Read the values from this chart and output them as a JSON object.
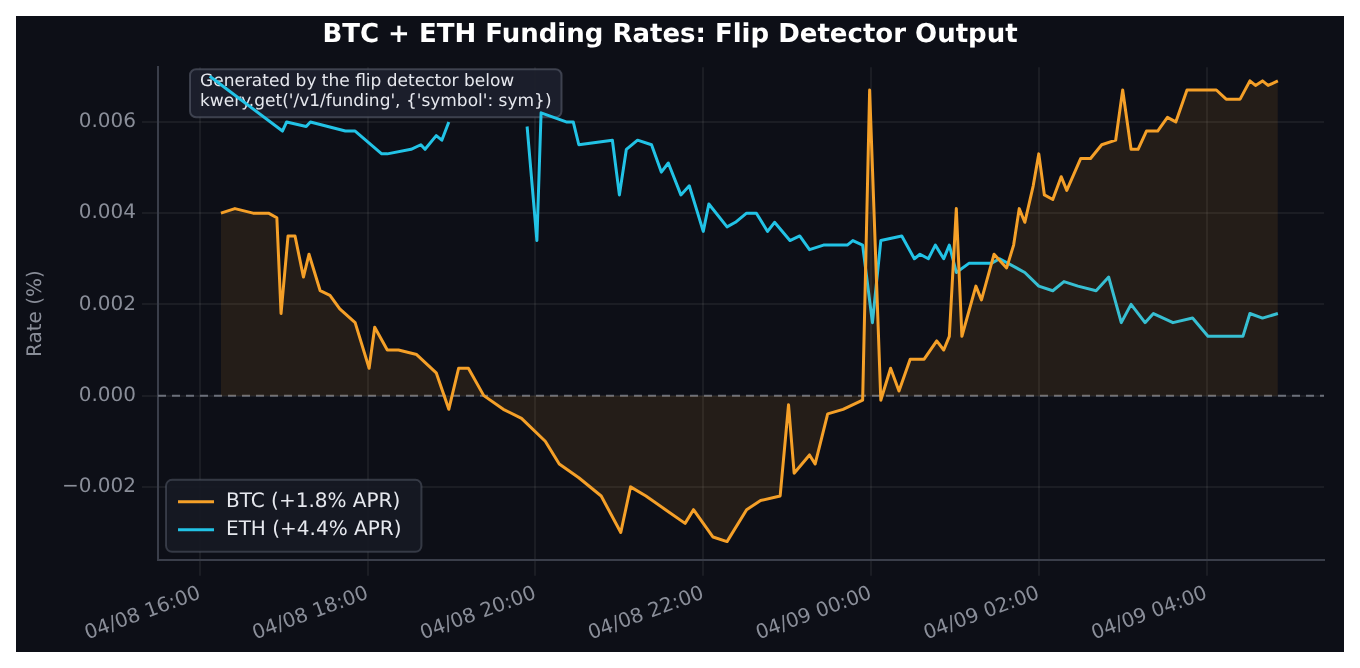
{
  "chart_data": {
    "type": "line",
    "title": "BTC + ETH Funding Rates: Flip Detector Output",
    "ylabel": "Rate (%)",
    "annotations": [
      "Generated by the flip detector below\nkwery.get('/v1/funding', {'symbol': sym})"
    ],
    "xlim": [
      "--04-08T15:30",
      "--04-09T05:24"
    ],
    "xticks": [
      {
        "value": "--04-08T16:00",
        "label": "04/08 16:00"
      },
      {
        "value": "--04-08T18:00",
        "label": "04/08 18:00"
      },
      {
        "value": "--04-08T20:00",
        "label": "04/08 20:00"
      },
      {
        "value": "--04-08T22:00",
        "label": "04/08 22:00"
      },
      {
        "value": "--04-09T00:00",
        "label": "04/09 00:00"
      },
      {
        "value": "--04-09T02:00",
        "label": "04/09 02:00"
      },
      {
        "value": "--04-09T04:00",
        "label": "04/09 04:00"
      }
    ],
    "ylim": [
      -0.0036,
      0.0072
    ],
    "yticks": [
      {
        "value": -0.002,
        "label": "−0.002"
      },
      {
        "value": 0,
        "label": "0.000"
      },
      {
        "value": 0.002,
        "label": "0.002"
      },
      {
        "value": 0.004,
        "label": "0.004"
      },
      {
        "value": 0.006,
        "label": "0.006"
      }
    ],
    "grid": true,
    "legend": "bottom left",
    "ref_lines": [
      {
        "axis": "y",
        "value": 0,
        "color": "#6b6f7a",
        "line_style": "dashed"
      }
    ],
    "series": [
      {
        "name": "BTC (+1.8% APR)",
        "type": "area",
        "color": "#f5a028",
        "x": [
          "--04-08T16:15",
          "--04-08T16:25",
          "--04-08T16:38",
          "--04-08T16:49",
          "--04-08T16:55",
          "--04-08T16:58",
          "--04-08T17:03",
          "--04-08T17:08",
          "--04-08T17:14",
          "--04-08T17:18",
          "--04-08T17:26",
          "--04-08T17:33",
          "--04-08T17:40",
          "--04-08T17:51",
          "--04-08T18:01",
          "--04-08T18:05",
          "--04-08T18:14",
          "--04-08T18:22",
          "--04-08T18:35",
          "--04-08T18:49",
          "--04-08T18:58",
          "--04-08T19:05",
          "--04-08T19:12",
          "--04-08T19:23",
          "--04-08T19:37",
          "--04-08T19:50",
          "--04-08T20:07",
          "--04-08T20:17",
          "--04-08T20:31",
          "--04-08T20:47",
          "--04-08T21:01",
          "--04-08T21:08",
          "--04-08T21:19",
          "--04-08T21:33",
          "--04-08T21:47",
          "--04-08T21:53",
          "--04-08T22:07",
          "--04-08T22:17",
          "--04-08T22:31",
          "--04-08T22:41",
          "--04-08T22:55",
          "--04-08T23:01",
          "--04-08T23:05",
          "--04-08T23:16",
          "--04-08T23:20",
          "--04-08T23:29",
          "--04-08T23:40",
          "--04-08T23:54",
          "--04-08T23:59",
          "--04-09T00:07",
          "--04-09T00:14",
          "--04-09T00:20",
          "--04-09T00:28",
          "--04-09T00:38",
          "--04-09T00:47",
          "--04-09T00:52",
          "--04-09T00:56",
          "--04-09T01:01",
          "--04-09T01:05",
          "--04-09T01:15",
          "--04-09T01:19",
          "--04-09T01:28",
          "--04-09T01:37",
          "--04-09T01:42",
          "--04-09T01:46",
          "--04-09T01:50",
          "--04-09T01:56",
          "--04-09T02:00",
          "--04-09T02:04",
          "--04-09T02:10",
          "--04-09T02:16",
          "--04-09T02:20",
          "--04-09T02:30",
          "--04-09T02:37",
          "--04-09T02:45",
          "--04-09T02:55",
          "--04-09T03:00",
          "--04-09T03:06",
          "--04-09T03:11",
          "--04-09T03:17",
          "--04-09T03:25",
          "--04-09T03:32",
          "--04-09T03:38",
          "--04-09T03:46",
          "--04-09T04:07",
          "--04-09T04:14",
          "--04-09T04:24",
          "--04-09T04:31",
          "--04-09T04:35",
          "--04-09T04:40",
          "--04-09T04:44",
          "--04-09T04:51"
        ],
        "values": [
          0.004,
          0.0041,
          0.004,
          0.004,
          0.0039,
          0.0018,
          0.0035,
          0.0035,
          0.0026,
          0.0031,
          0.0023,
          0.0022,
          0.0019,
          0.0016,
          0.0006,
          0.0015,
          0.001,
          0.001,
          0.0009,
          0.0005,
          -0.0003,
          0.0006,
          0.0006,
          0.0,
          -0.0003,
          -0.0005,
          -0.001,
          -0.0015,
          -0.0018,
          -0.0022,
          -0.003,
          -0.002,
          -0.0022,
          -0.0025,
          -0.0028,
          -0.0025,
          -0.0031,
          -0.0032,
          -0.0025,
          -0.0023,
          -0.0022,
          -0.0002,
          -0.0017,
          -0.0013,
          -0.0015,
          -0.0004,
          -0.0003,
          -0.0001,
          0.0067,
          -0.0001,
          0.0006,
          0.0001,
          0.0008,
          0.0008,
          0.0012,
          0.001,
          0.0013,
          0.0041,
          0.0013,
          0.0024,
          0.0021,
          0.0031,
          0.0028,
          0.0033,
          0.0041,
          0.0038,
          0.0046,
          0.0053,
          0.0044,
          0.0043,
          0.0048,
          0.0045,
          0.0052,
          0.0052,
          0.0055,
          0.0056,
          0.0067,
          0.0054,
          0.0054,
          0.0058,
          0.0058,
          0.0061,
          0.006,
          0.0067,
          0.0067,
          0.0065,
          0.0065,
          0.0069,
          0.0068,
          0.0069,
          0.0068,
          0.0069
        ]
      },
      {
        "name": "ETH (+4.4% APR)",
        "type": "line",
        "color": "#22c3e6",
        "x": [
          "--04-08T16:07",
          "--04-08T16:59",
          "--04-08T17:02",
          "--04-08T17:16",
          "--04-08T17:19",
          "--04-08T17:44",
          "--04-08T17:51",
          "--04-08T18:10",
          "--04-08T18:14",
          "--04-08T18:31",
          "--04-08T18:38",
          "--04-08T18:41",
          "--04-08T18:49",
          "--04-08T18:53",
          "--04-08T18:58",
          "--04-08T19:30",
          "--04-08T19:54",
          "--04-08T20:01",
          "--04-08T20:04",
          "--04-08T20:22",
          "--04-08T20:27",
          "--04-08T20:31",
          "--04-08T20:55",
          "--04-08T21:00",
          "--04-08T21:05",
          "--04-08T21:13",
          "--04-08T21:23",
          "--04-08T21:30",
          "--04-08T21:35",
          "--04-08T21:44",
          "--04-08T21:50",
          "--04-08T22:00",
          "--04-08T22:04",
          "--04-08T22:17",
          "--04-08T22:23",
          "--04-08T22:31",
          "--04-08T22:38",
          "--04-08T22:46",
          "--04-08T22:51",
          "--04-08T23:02",
          "--04-08T23:09",
          "--04-08T23:16",
          "--04-08T23:26",
          "--04-08T23:43",
          "--04-08T23:47",
          "--04-08T23:54",
          "--04-09T00:01",
          "--04-09T00:07",
          "--04-09T00:22",
          "--04-09T00:31",
          "--04-09T00:35",
          "--04-09T00:41",
          "--04-09T00:46",
          "--04-09T00:52",
          "--04-09T00:56",
          "--04-09T01:01",
          "--04-09T01:10",
          "--04-09T01:26",
          "--04-09T01:32",
          "--04-09T01:44",
          "--04-09T01:50",
          "--04-09T02:00",
          "--04-09T02:10",
          "--04-09T02:18",
          "--04-09T02:28",
          "--04-09T02:41",
          "--04-09T02:50",
          "--04-09T02:59",
          "--04-09T03:06",
          "--04-09T03:16",
          "--04-09T03:22",
          "--04-09T03:36",
          "--04-09T03:50",
          "--04-09T04:01",
          "--04-09T04:21",
          "--04-09T04:26",
          "--04-09T04:31",
          "--04-09T04:40",
          "--04-09T04:51"
        ],
        "values": [
          0.007,
          0.0058,
          0.006,
          0.0059,
          0.006,
          0.0058,
          0.0058,
          0.0053,
          0.0053,
          0.0054,
          0.0055,
          0.0054,
          0.0057,
          0.0056,
          0.006,
          null,
          0.0059,
          0.0034,
          0.0062,
          0.006,
          0.006,
          0.0055,
          0.0056,
          0.0044,
          0.0054,
          0.0056,
          0.0055,
          0.0049,
          0.0051,
          0.0044,
          0.0046,
          0.0036,
          0.0042,
          0.0037,
          0.0038,
          0.004,
          0.004,
          0.0036,
          0.0038,
          0.0034,
          0.0035,
          0.0032,
          0.0033,
          0.0033,
          0.0034,
          0.0033,
          0.0016,
          0.0034,
          0.0035,
          0.003,
          0.0031,
          0.003,
          0.0033,
          0.003,
          0.0033,
          0.0027,
          0.0029,
          0.0029,
          0.003,
          0.0028,
          0.0027,
          0.0024,
          0.0023,
          0.0025,
          0.0024,
          0.0023,
          0.0026,
          0.0016,
          0.002,
          0.0016,
          0.0018,
          0.0016,
          0.0017,
          0.0013,
          0.0013,
          0.0013,
          0.0018,
          0.0017,
          0.0018
        ]
      }
    ]
  }
}
